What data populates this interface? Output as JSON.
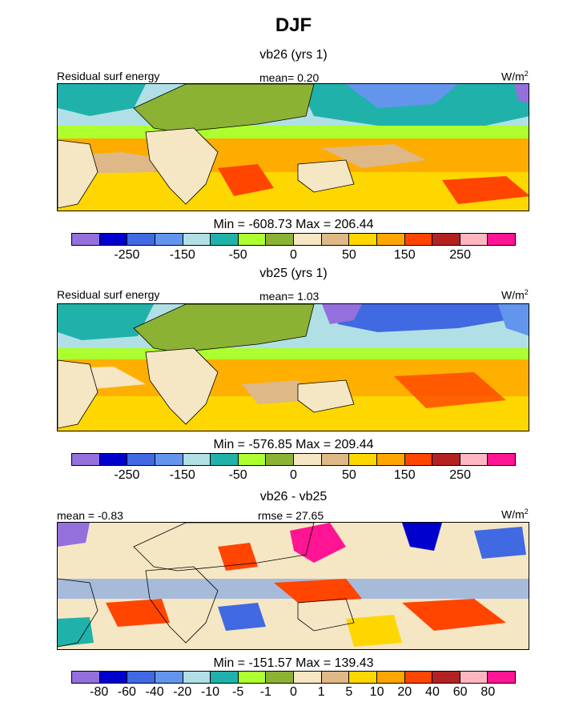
{
  "figure": {
    "title": "DJF"
  },
  "colors": {
    "palette": [
      "#9370db",
      "#0000cd",
      "#4169e1",
      "#6495ed",
      "#b0e0e6",
      "#20b2aa",
      "#adff2f",
      "#8cb234",
      "#f5e6c4",
      "#deb887",
      "#ffd700",
      "#ffa500",
      "#ff4500",
      "#b22222",
      "#ffb6c1",
      "#ff1493"
    ],
    "land": "#8cb234"
  },
  "chart_data": [
    {
      "type": "heatmap",
      "title": "vb26 (yrs 1)",
      "variable_label": "Residual surf energy",
      "mean_text": "mean=   0.20",
      "units_base": "W/m",
      "units_exp": "2",
      "stats_text": "Min = -608.73 Max = 206.44",
      "colorbar_ticks": [
        "-250",
        "-150",
        "-50",
        "0",
        "50",
        "150",
        "250"
      ],
      "colorbar_levels": [
        -350,
        -300,
        -250,
        -200,
        -150,
        -100,
        -50,
        -25,
        0,
        25,
        50,
        100,
        150,
        200,
        250,
        300
      ]
    },
    {
      "type": "heatmap",
      "title": "vb25 (yrs 1)",
      "variable_label": "Residual surf energy",
      "mean_text": "mean=   1.03",
      "units_base": "W/m",
      "units_exp": "2",
      "stats_text": "Min = -576.85 Max = 209.44",
      "colorbar_ticks": [
        "-250",
        "-150",
        "-50",
        "0",
        "50",
        "150",
        "250"
      ],
      "colorbar_levels": [
        -350,
        -300,
        -250,
        -200,
        -150,
        -100,
        -50,
        -25,
        0,
        25,
        50,
        100,
        150,
        200,
        250,
        300
      ]
    },
    {
      "type": "heatmap",
      "title": "vb26 - vb25",
      "mean_text": "mean =  -0.83",
      "rmse_text": "rmse =  27.65",
      "units_base": "W/m",
      "units_exp": "2",
      "stats_text": "Min = -151.57 Max = 139.43",
      "colorbar_ticks": [
        "-80",
        "-60",
        "-40",
        "-20",
        "-10",
        "-5",
        "-1",
        "0",
        "1",
        "5",
        "10",
        "20",
        "40",
        "60",
        "80"
      ],
      "colorbar_levels": [
        -100,
        -80,
        -60,
        -40,
        -20,
        -10,
        -5,
        -1,
        0,
        1,
        5,
        10,
        20,
        40,
        60,
        80
      ]
    }
  ]
}
